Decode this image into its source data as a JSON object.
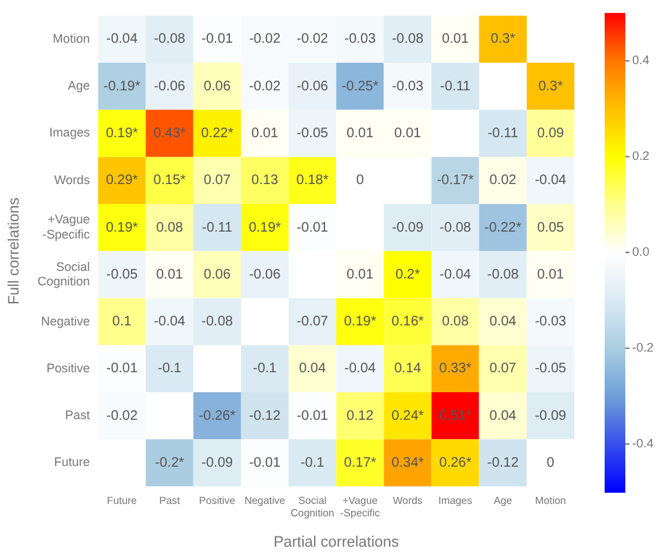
{
  "chart_data": {
    "type": "heatmap",
    "xlabel": "Partial correlations",
    "ylabel": "Full correlations",
    "categories": [
      "Future",
      "Past",
      "Positive",
      "Negative",
      "Social Cognition",
      "+Vague -Specific",
      "Words",
      "Images",
      "Age",
      "Motion"
    ],
    "y_categories": [
      "Motion",
      "Age",
      "Images",
      "Words",
      "+Vague -Specific",
      "Social Cognition",
      "Negative",
      "Positive",
      "Past",
      "Future"
    ],
    "cells": [
      [
        -0.04,
        -0.08,
        -0.01,
        -0.02,
        -0.02,
        -0.03,
        -0.08,
        0.01,
        0.3,
        null
      ],
      [
        -0.19,
        -0.06,
        0.06,
        -0.02,
        -0.06,
        -0.25,
        -0.03,
        -0.11,
        null,
        0.3
      ],
      [
        0.19,
        0.43,
        0.22,
        0.01,
        -0.05,
        0.01,
        0.01,
        null,
        -0.11,
        0.09
      ],
      [
        0.29,
        0.15,
        0.07,
        0.13,
        0.18,
        0,
        null,
        -0.17,
        0.02,
        -0.04
      ],
      [
        0.19,
        0.08,
        -0.11,
        0.19,
        -0.01,
        null,
        -0.09,
        -0.08,
        -0.22,
        0.05
      ],
      [
        -0.05,
        0.01,
        0.06,
        -0.06,
        null,
        0.01,
        0.2,
        -0.04,
        -0.08,
        0.01
      ],
      [
        0.1,
        -0.04,
        -0.08,
        null,
        -0.07,
        0.19,
        0.16,
        0.08,
        0.04,
        -0.03
      ],
      [
        -0.01,
        -0.1,
        null,
        -0.1,
        0.04,
        -0.04,
        0.14,
        0.33,
        0.07,
        -0.05
      ],
      [
        -0.02,
        null,
        -0.26,
        -0.12,
        -0.01,
        0.12,
        0.24,
        0.51,
        0.04,
        -0.09
      ],
      [
        null,
        -0.2,
        -0.09,
        -0.01,
        -0.1,
        0.17,
        0.34,
        0.26,
        -0.12,
        0
      ]
    ],
    "cell_labels": [
      [
        "-0.04",
        "-0.08",
        "-0.01",
        "-0.02",
        "-0.02",
        "-0.03",
        "-0.08",
        "0.01",
        "0.3*",
        null
      ],
      [
        "-0.19*",
        "-0.06",
        "0.06",
        "-0.02",
        "-0.06",
        "-0.25*",
        "-0.03",
        "-0.11",
        null,
        "0.3*"
      ],
      [
        "0.19*",
        "0.43*",
        "0.22*",
        "0.01",
        "-0.05",
        "0.01",
        "0.01",
        null,
        "-0.11",
        "0.09"
      ],
      [
        "0.29*",
        "0.15*",
        "0.07",
        "0.13",
        "0.18*",
        "0",
        null,
        "-0.17*",
        "0.02",
        "-0.04"
      ],
      [
        "0.19*",
        "0.08",
        "-0.11",
        "0.19*",
        "-0.01",
        null,
        "-0.09",
        "-0.08",
        "-0.22*",
        "0.05"
      ],
      [
        "-0.05",
        "0.01",
        "0.06",
        "-0.06",
        null,
        "0.01",
        "0.2*",
        "-0.04",
        "-0.08",
        "0.01"
      ],
      [
        "0.1",
        "-0.04",
        "-0.08",
        null,
        "-0.07",
        "0.19*",
        "0.16*",
        "0.08",
        "0.04",
        "-0.03"
      ],
      [
        "-0.01",
        "-0.1",
        null,
        "-0.1",
        "0.04",
        "-0.04",
        "0.14",
        "0.33*",
        "0.07",
        "-0.05"
      ],
      [
        "-0.02",
        null,
        "-0.26*",
        "-0.12",
        "-0.01",
        "0.12",
        "0.24*",
        "0.51*",
        "0.04",
        "-0.09"
      ],
      [
        null,
        "-0.2*",
        "-0.09",
        "-0.01",
        "-0.1",
        "0.17*",
        "0.34*",
        "0.26*",
        "-0.12",
        "0"
      ]
    ],
    "clim": [
      -0.5,
      0.5
    ],
    "cticks": [
      -0.4,
      -0.2,
      {
        "value": 0,
        "label": "0.0"
      },
      0.2,
      0.4
    ]
  }
}
